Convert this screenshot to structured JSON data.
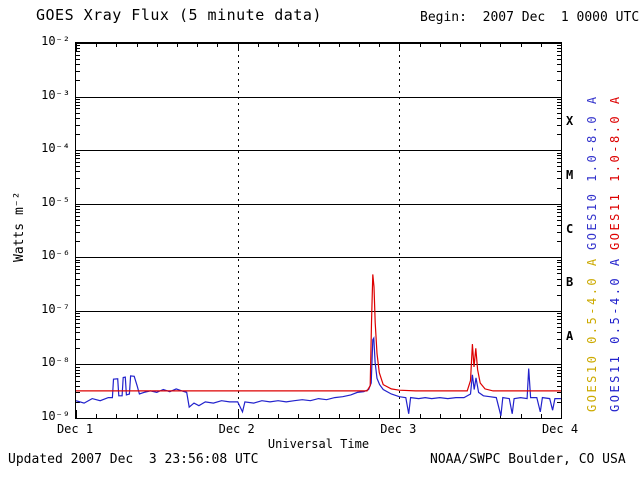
{
  "header": {
    "title": "GOES Xray Flux (5 minute data)",
    "begin_label": "Begin:  2007 Dec  1 0000 UTC"
  },
  "axes": {
    "x_label": "Universal Time",
    "y_label": "Watts m⁻²"
  },
  "footer": {
    "updated": "Updated 2007 Dec  3 23:56:08 UTC",
    "credit": "NOAA/SWPC Boulder, CO USA"
  },
  "chart_data": {
    "type": "line",
    "title": "GOES Xray Flux (5 minute data)",
    "xlabel": "Universal Time",
    "ylabel": "Watts m^-2",
    "x_range_days": [
      0,
      3
    ],
    "x_tick_labels": [
      "Dec 1",
      "Dec 2",
      "Dec 3",
      "Dec 4"
    ],
    "x_minor_tick_days": 0.125,
    "ylim": [
      1e-09,
      0.01
    ],
    "y_scale": "log",
    "y_tick_exponents": [
      -2,
      -3,
      -4,
      -5,
      -6,
      -7,
      -8,
      -9
    ],
    "grid": {
      "horizontal_major": true,
      "vertical_dashed_at_days": [
        1,
        2
      ]
    },
    "flare_classes": [
      {
        "label": "X",
        "log_center": -3.5
      },
      {
        "label": "M",
        "log_center": -4.5
      },
      {
        "label": "C",
        "log_center": -5.5
      },
      {
        "label": "B",
        "log_center": -6.5
      },
      {
        "label": "A",
        "log_center": -7.5
      }
    ],
    "legend": [
      {
        "label": "GOES10 1.0-8.0 A",
        "color": "#3333cc",
        "col": 0,
        "row": 0
      },
      {
        "label": "GOES11 1.0-8.0 A",
        "color": "#dd0000",
        "col": 1,
        "row": 0
      },
      {
        "label": "GOES10 0.5-4.0 A",
        "color": "#ccaa00",
        "col": 0,
        "row": 1
      },
      {
        "label": "GOES11 0.5-4.0 A",
        "color": "#2222cc",
        "col": 1,
        "row": 1
      }
    ],
    "series": [
      {
        "name": "GOES11 0.5-4.0 A",
        "color": "#2222cc",
        "points": [
          [
            0,
            2.1e-09
          ],
          [
            0.05,
            1.9e-09
          ],
          [
            0.1,
            2.3e-09
          ],
          [
            0.15,
            2.1e-09
          ],
          [
            0.2,
            2.4e-09
          ],
          [
            0.225,
            2.4e-09
          ],
          [
            0.232,
            5.3e-09
          ],
          [
            0.258,
            5.4e-09
          ],
          [
            0.265,
            2.6e-09
          ],
          [
            0.285,
            2.6e-09
          ],
          [
            0.292,
            5.7e-09
          ],
          [
            0.305,
            5.8e-09
          ],
          [
            0.312,
            2.7e-09
          ],
          [
            0.33,
            2.8e-09
          ],
          [
            0.338,
            6.1e-09
          ],
          [
            0.36,
            6e-09
          ],
          [
            0.378,
            4e-09
          ],
          [
            0.392,
            2.8e-09
          ],
          [
            0.42,
            3e-09
          ],
          [
            0.46,
            3.2e-09
          ],
          [
            0.5,
            3e-09
          ],
          [
            0.54,
            3.4e-09
          ],
          [
            0.58,
            3.1e-09
          ],
          [
            0.62,
            3.5e-09
          ],
          [
            0.655,
            3.2e-09
          ],
          [
            0.685,
            3e-09
          ],
          [
            0.7,
            1.6e-09
          ],
          [
            0.73,
            1.9e-09
          ],
          [
            0.76,
            1.7e-09
          ],
          [
            0.8,
            2e-09
          ],
          [
            0.85,
            1.9e-09
          ],
          [
            0.9,
            2.1e-09
          ],
          [
            0.95,
            2e-09
          ],
          [
            1.0,
            2e-09
          ],
          [
            1.03,
            1.3e-09
          ],
          [
            1.045,
            2e-09
          ],
          [
            1.1,
            1.9e-09
          ],
          [
            1.15,
            2.1e-09
          ],
          [
            1.2,
            2e-09
          ],
          [
            1.25,
            2.1e-09
          ],
          [
            1.3,
            2e-09
          ],
          [
            1.35,
            2.1e-09
          ],
          [
            1.4,
            2.2e-09
          ],
          [
            1.45,
            2.1e-09
          ],
          [
            1.5,
            2.3e-09
          ],
          [
            1.55,
            2.2e-09
          ],
          [
            1.6,
            2.4e-09
          ],
          [
            1.65,
            2.5e-09
          ],
          [
            1.7,
            2.7e-09
          ],
          [
            1.74,
            3e-09
          ],
          [
            1.78,
            3.1e-09
          ],
          [
            1.81,
            3.4e-09
          ],
          [
            1.826,
            4.5e-09
          ],
          [
            1.836,
            2.9e-08
          ],
          [
            1.842,
            3.1e-08
          ],
          [
            1.85,
            1.1e-08
          ],
          [
            1.862,
            5.5e-09
          ],
          [
            1.878,
            4.2e-09
          ],
          [
            1.9,
            3.4e-09
          ],
          [
            1.95,
            2.8e-09
          ],
          [
            2.0,
            2.5e-09
          ],
          [
            2.04,
            2.4e-09
          ],
          [
            2.058,
            1.2e-09
          ],
          [
            2.07,
            2.4e-09
          ],
          [
            2.12,
            2.3e-09
          ],
          [
            2.16,
            2.4e-09
          ],
          [
            2.2,
            2.3e-09
          ],
          [
            2.25,
            2.4e-09
          ],
          [
            2.3,
            2.3e-09
          ],
          [
            2.35,
            2.4e-09
          ],
          [
            2.4,
            2.4e-09
          ],
          [
            2.44,
            2.8e-09
          ],
          [
            2.452,
            6.4e-09
          ],
          [
            2.463,
            3.4e-09
          ],
          [
            2.474,
            5.6e-09
          ],
          [
            2.49,
            3e-09
          ],
          [
            2.52,
            2.6e-09
          ],
          [
            2.56,
            2.5e-09
          ],
          [
            2.6,
            2.4e-09
          ],
          [
            2.628,
            1.1e-09
          ],
          [
            2.64,
            2.4e-09
          ],
          [
            2.68,
            2.3e-09
          ],
          [
            2.698,
            1.2e-09
          ],
          [
            2.71,
            2.3e-09
          ],
          [
            2.75,
            2.4e-09
          ],
          [
            2.79,
            2.3e-09
          ],
          [
            2.8,
            8.4e-09
          ],
          [
            2.812,
            2.4e-09
          ],
          [
            2.85,
            2.4e-09
          ],
          [
            2.872,
            1.3e-09
          ],
          [
            2.885,
            2.4e-09
          ],
          [
            2.93,
            2.3e-09
          ],
          [
            2.948,
            1.4e-09
          ],
          [
            2.962,
            2.3e-09
          ],
          [
            3,
            2.3e-09
          ]
        ]
      },
      {
        "name": "GOES11 1.0-8.0 A",
        "color": "#dd0000",
        "points": [
          [
            0,
            3.2e-09
          ],
          [
            1.8,
            3.2e-09
          ],
          [
            1.82,
            4e-09
          ],
          [
            1.828,
            6e-08
          ],
          [
            1.836,
            4.8e-07
          ],
          [
            1.843,
            2.8e-07
          ],
          [
            1.851,
            6e-08
          ],
          [
            1.862,
            1.6e-08
          ],
          [
            1.876,
            7e-09
          ],
          [
            1.9,
            4.2e-09
          ],
          [
            1.95,
            3.5e-09
          ],
          [
            2.0,
            3.3e-09
          ],
          [
            2.1,
            3.2e-09
          ],
          [
            2.42,
            3.2e-09
          ],
          [
            2.44,
            5e-09
          ],
          [
            2.452,
            2.4e-08
          ],
          [
            2.462,
            9e-09
          ],
          [
            2.473,
            2e-08
          ],
          [
            2.484,
            8e-09
          ],
          [
            2.5,
            4.5e-09
          ],
          [
            2.53,
            3.5e-09
          ],
          [
            2.58,
            3.2e-09
          ],
          [
            3,
            3.2e-09
          ]
        ]
      }
    ]
  }
}
